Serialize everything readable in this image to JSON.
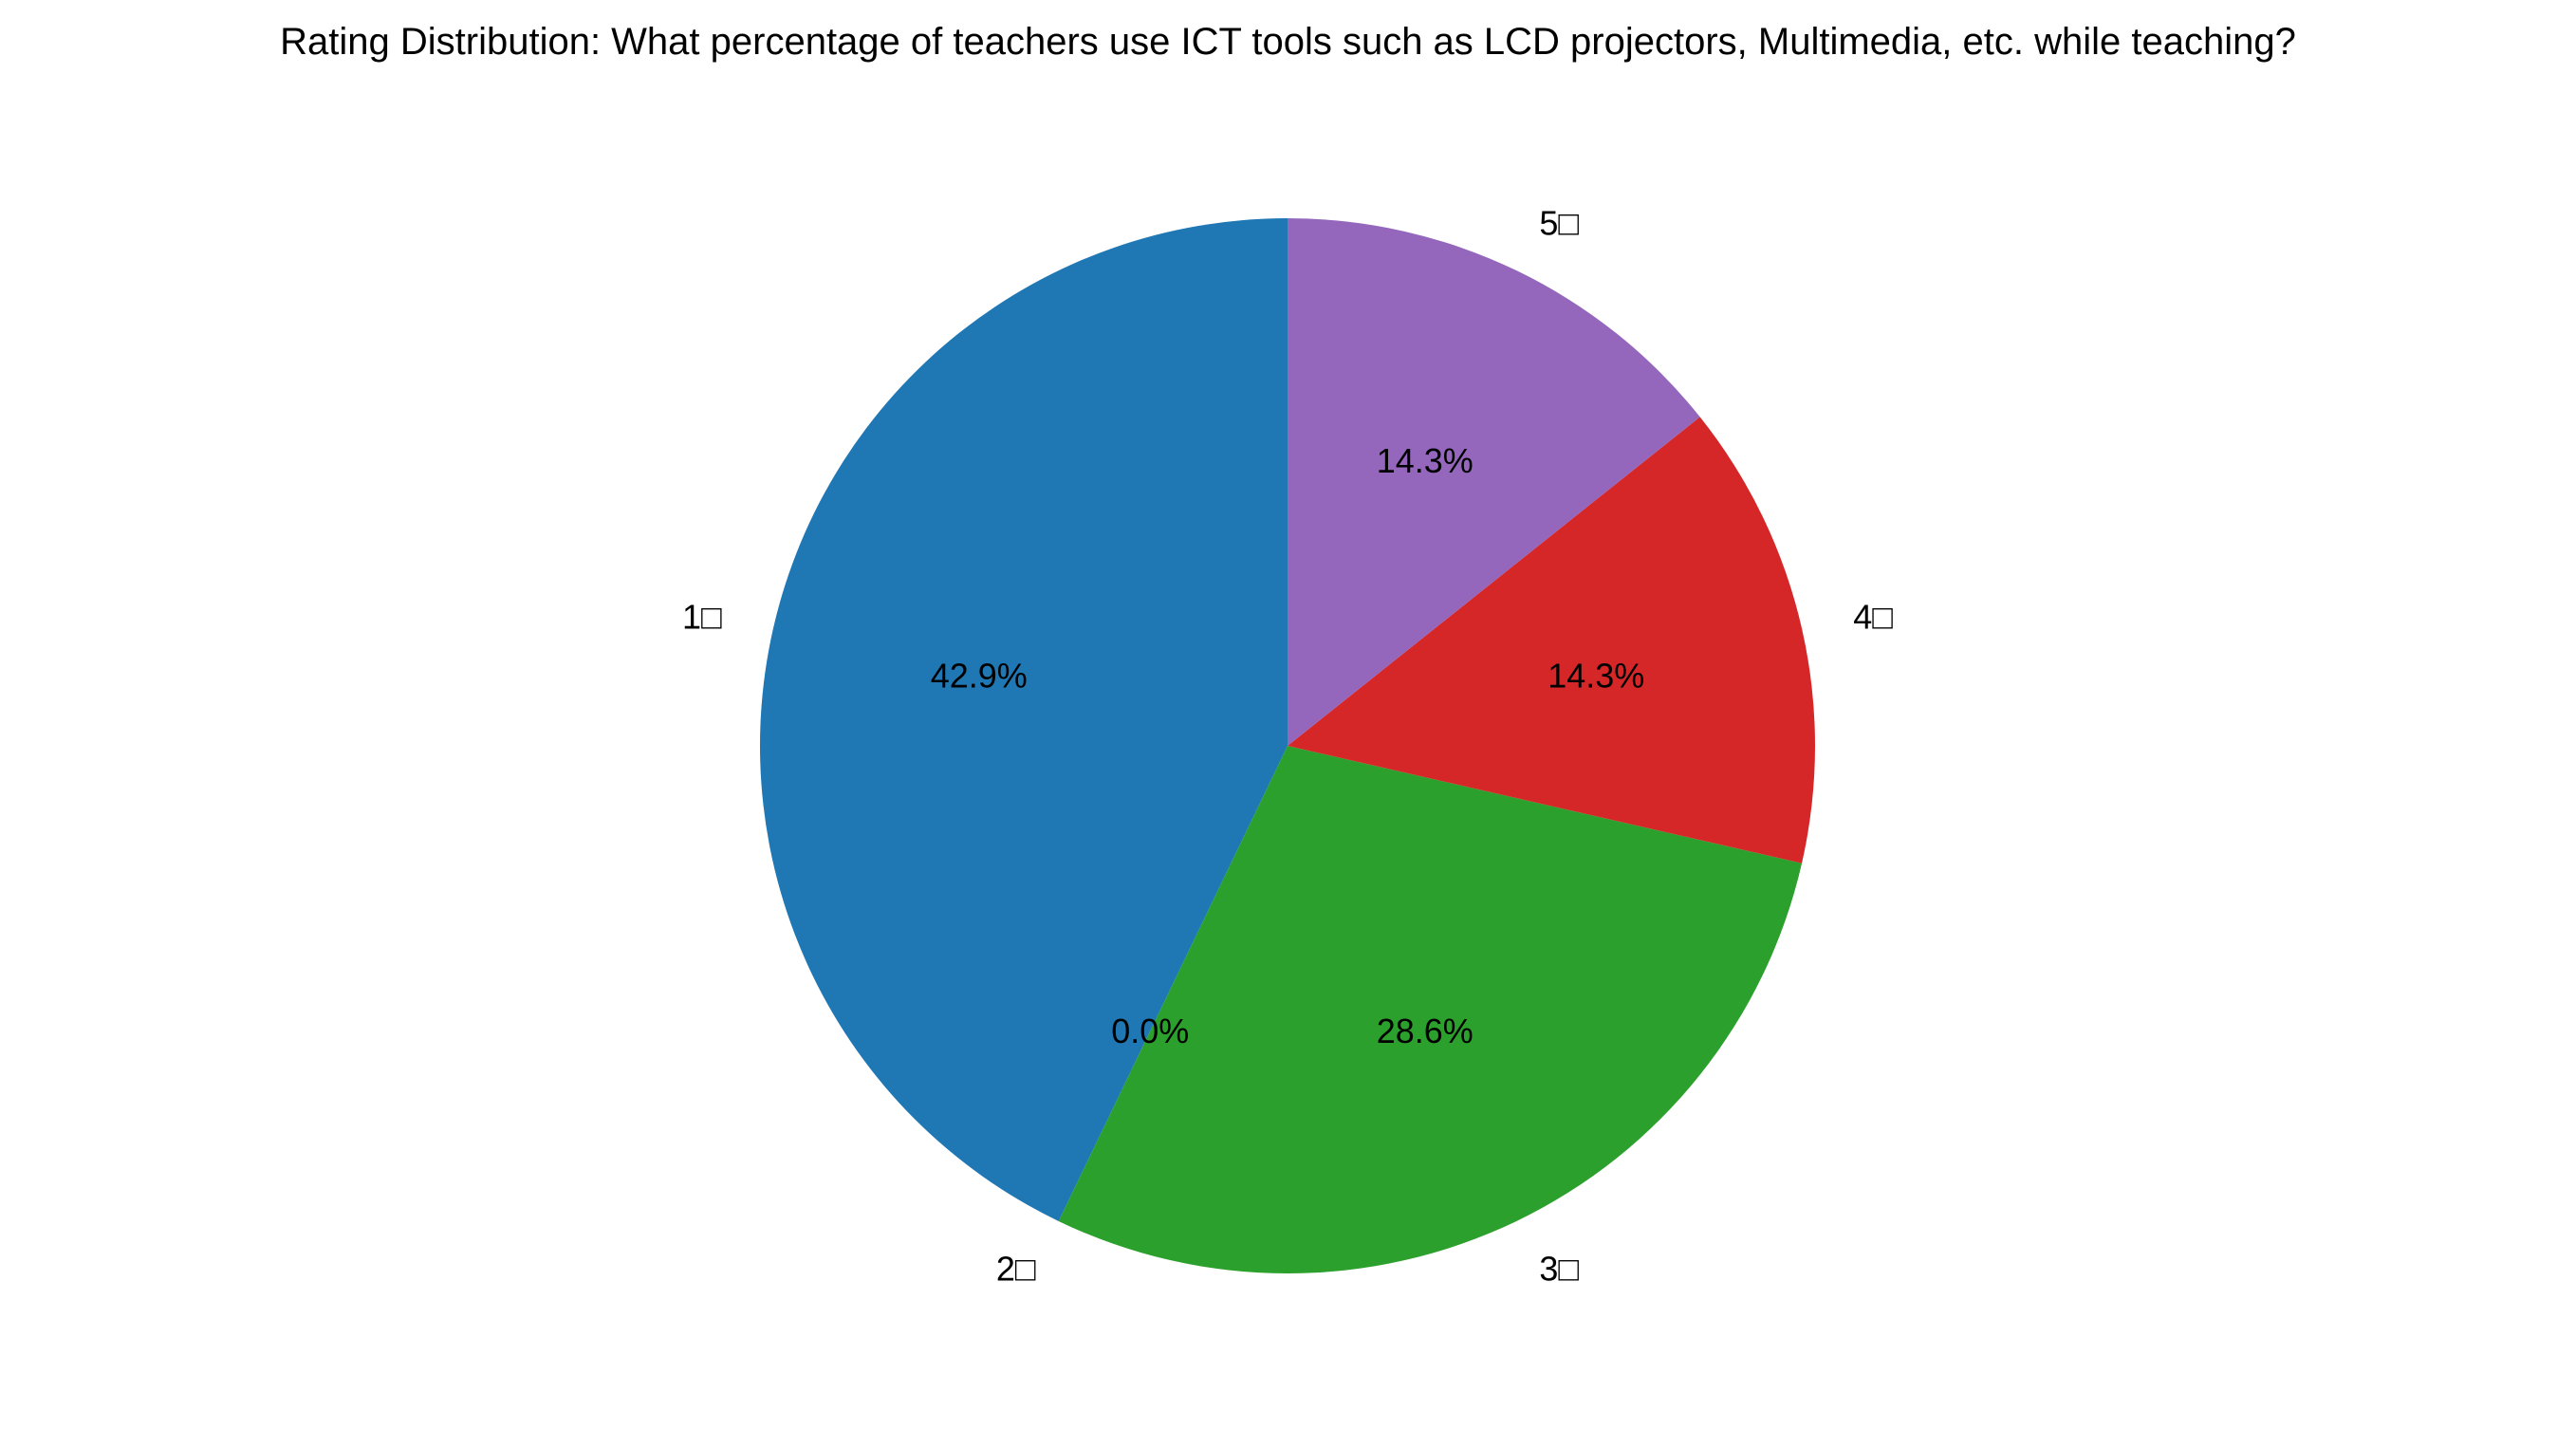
{
  "chart_data": {
    "type": "pie",
    "title": "Rating Distribution: What percentage of teachers use ICT tools such as LCD projectors, Multimedia, etc. while teaching?",
    "slices": [
      {
        "label": "1□",
        "value": 42.9,
        "pct_label": "42.9%",
        "color": "#1f77b4"
      },
      {
        "label": "2□",
        "value": 0.0,
        "pct_label": "0.0%",
        "color": "#ff7f0e"
      },
      {
        "label": "3□",
        "value": 28.6,
        "pct_label": "28.6%",
        "color": "#2ca02c"
      },
      {
        "label": "4□",
        "value": 14.3,
        "pct_label": "14.3%",
        "color": "#d62728"
      },
      {
        "label": "5□",
        "value": 14.3,
        "pct_label": "14.3%",
        "color": "#9467bd"
      }
    ],
    "start_angle_deg": 90,
    "direction": "counterclockwise",
    "legend": "none"
  }
}
